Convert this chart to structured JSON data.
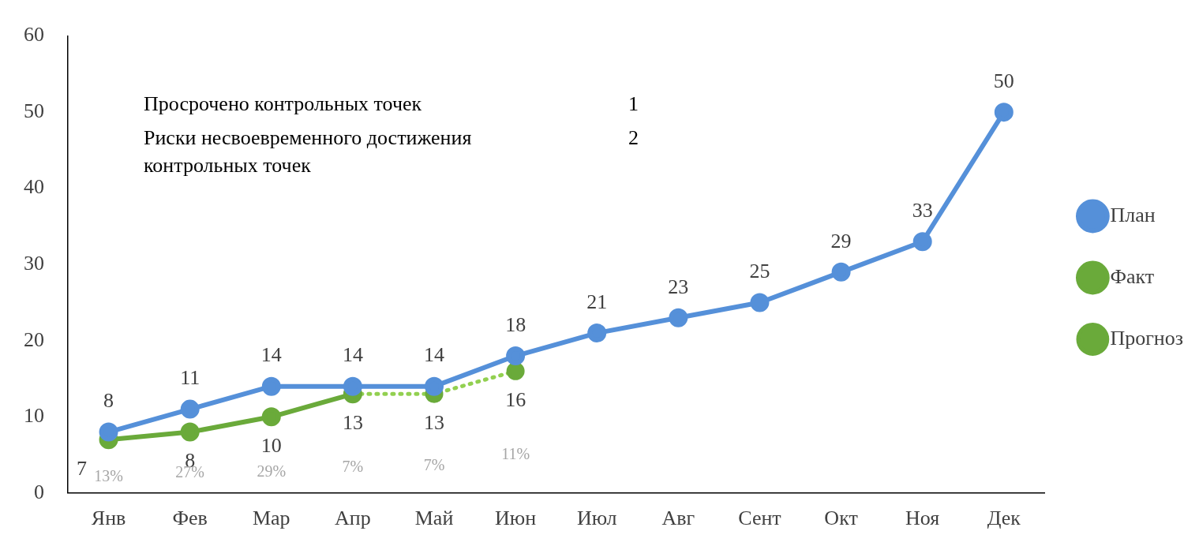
{
  "chart_data": {
    "type": "line",
    "categories": [
      "Янв",
      "Фев",
      "Мар",
      "Апр",
      "Май",
      "Июн",
      "Июл",
      "Авг",
      "Сент",
      "Окт",
      "Ноя",
      "Дек"
    ],
    "ylim": [
      0,
      60
    ],
    "yticks": [
      0,
      10,
      20,
      30,
      40,
      50,
      60
    ],
    "grid": false,
    "legend": "right",
    "marker": "circle",
    "series": [
      {
        "name": "План",
        "color": "#5590d9",
        "values": [
          8,
          11,
          14,
          14,
          14,
          18,
          21,
          23,
          25,
          29,
          33,
          50
        ],
        "value_labels": [
          "8",
          "11",
          "14",
          "14",
          "14",
          "18",
          "21",
          "23",
          "25",
          "29",
          "33",
          "50"
        ]
      },
      {
        "name": "Факт",
        "color": "#6aaa3a",
        "values": [
          7,
          8,
          10,
          13,
          null,
          null,
          null,
          null,
          null,
          null,
          null,
          null
        ],
        "value_labels": [
          "7",
          "8",
          "10",
          "13",
          null,
          null,
          null,
          null,
          null,
          null,
          null,
          null
        ]
      },
      {
        "name": "Прогноз",
        "color": "#92d050",
        "line_style": "dotted",
        "values": [
          null,
          null,
          null,
          13,
          13,
          16,
          null,
          null,
          null,
          null,
          null,
          null
        ],
        "value_labels": [
          null,
          null,
          null,
          null,
          "13",
          "16",
          null,
          null,
          null,
          null,
          null,
          null
        ]
      }
    ],
    "annotations": [
      "Просрочено контрольных точек",
      "1",
      "Риски несвоевременного достижения контрольных точек",
      "2",
      "13%",
      "27%",
      "29%",
      "7%",
      "7%",
      "11%"
    ]
  }
}
